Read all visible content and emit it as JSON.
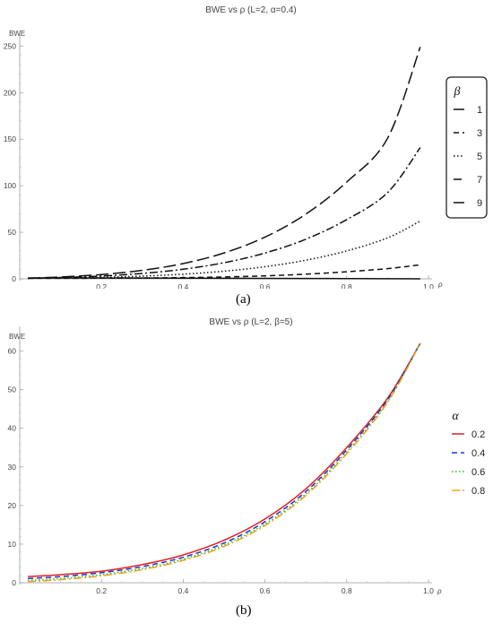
{
  "panels": [
    {
      "label": "(a)",
      "chart_data": {
        "type": "line",
        "title": "BWE vs ρ (L=2, α=0.4)",
        "xlabel": "ρ",
        "ylabel": "BWE",
        "xlim": [
          0.0,
          1.0
        ],
        "ylim": [
          0,
          260
        ],
        "xticks": [
          0.2,
          0.4,
          0.6,
          0.8,
          1.0
        ],
        "xtick_labels": [
          "0.2",
          "0.4",
          "0.6",
          "0.8",
          "1.0"
        ],
        "yticks": [
          0,
          50,
          100,
          150,
          200,
          250
        ],
        "ytick_labels": [
          "0",
          "50",
          "100",
          "150",
          "200",
          "250"
        ],
        "legend": {
          "title": "β",
          "placement": "right"
        },
        "x": [
          0.02,
          0.1,
          0.2,
          0.3,
          0.4,
          0.5,
          0.6,
          0.7,
          0.8,
          0.9,
          0.98
        ],
        "series": [
          {
            "name": "1",
            "color": "#111111",
            "dash": "solid",
            "values": [
              1.0,
              0.97,
              0.92,
              0.86,
              0.77,
              0.66,
              0.52,
              0.38,
              0.24,
              0.1,
              0.0
            ]
          },
          {
            "name": "3",
            "color": "#111111",
            "dash": "dashed",
            "values": [
              0.6,
              0.6,
              0.7,
              0.9,
              1.3,
              2.0,
              3.2,
              5.0,
              7.6,
              11.0,
              15.0
            ]
          },
          {
            "name": "5",
            "color": "#111111",
            "dash": "dotted",
            "values": [
              0.6,
              0.9,
              1.6,
              2.9,
              5.0,
              8.2,
              13.0,
              20.0,
              30.0,
              44.0,
              62.0
            ]
          },
          {
            "name": "7",
            "color": "#111111",
            "dash": "dashdot",
            "values": [
              0.6,
              1.4,
              3.0,
              5.8,
              10.3,
              17.3,
              27.7,
              42.6,
              63.6,
              92.6,
              141.0
            ]
          },
          {
            "name": "9",
            "color": "#111111",
            "dash": "longdash",
            "values": [
              0.6,
              2.0,
              4.6,
              9.1,
              16.4,
              27.8,
              44.8,
              69.5,
              104.0,
              151.0,
              249.0
            ]
          }
        ]
      }
    },
    {
      "label": "(b)",
      "chart_data": {
        "type": "line",
        "title": "BWE vs ρ (L=2, β=5)",
        "xlabel": "ρ",
        "ylabel": "BWE",
        "xlim": [
          0.0,
          1.0
        ],
        "ylim": [
          0,
          65
        ],
        "xticks": [
          0.2,
          0.4,
          0.6,
          0.8,
          1.0
        ],
        "xtick_labels": [
          "0.2",
          "0.4",
          "0.6",
          "0.8",
          "1.0"
        ],
        "yticks": [
          0,
          10,
          20,
          30,
          40,
          50,
          60
        ],
        "ytick_labels": [
          "0",
          "10",
          "20",
          "30",
          "40",
          "50",
          "60"
        ],
        "legend": {
          "title": "α",
          "placement": "right"
        },
        "x": [
          0.02,
          0.1,
          0.2,
          0.3,
          0.4,
          0.5,
          0.6,
          0.7,
          0.8,
          0.9,
          0.98
        ],
        "series": [
          {
            "name": "0.2",
            "color": "#e02020",
            "dash": "solid",
            "values": [
              1.6,
              2.1,
              3.0,
              4.7,
              7.2,
              11.0,
              16.5,
              24.3,
              35.0,
              47.8,
              62.0
            ]
          },
          {
            "name": "0.4",
            "color": "#2030d0",
            "dash": "dashed",
            "values": [
              1.1,
              1.6,
              2.6,
              4.2,
              6.6,
              10.3,
              15.8,
              23.6,
              34.4,
              47.4,
              62.0
            ]
          },
          {
            "name": "0.6",
            "color": "#20c020",
            "dash": "dotted",
            "values": [
              0.6,
              1.1,
              2.1,
              3.7,
              6.1,
              9.8,
              15.2,
              23.0,
              33.8,
              47.0,
              62.0
            ]
          },
          {
            "name": "0.8",
            "color": "#f0a020",
            "dash": "dashdot",
            "values": [
              0.3,
              0.8,
              1.8,
              3.4,
              5.8,
              9.4,
              14.8,
              22.6,
              33.4,
              46.7,
              62.0
            ]
          }
        ]
      }
    }
  ]
}
